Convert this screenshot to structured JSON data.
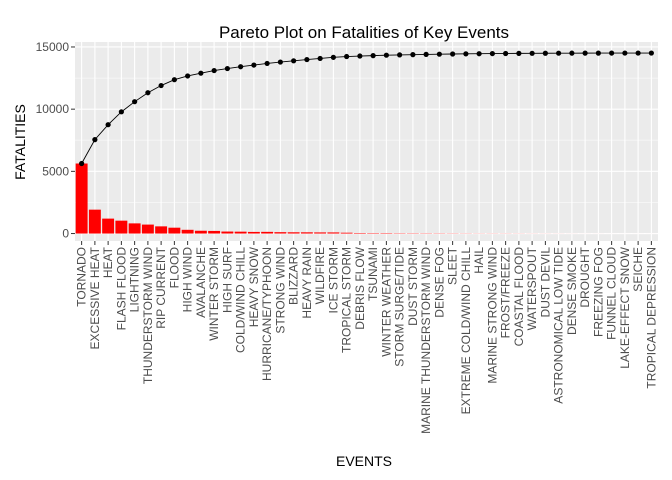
{
  "chart_data": {
    "type": "bar",
    "title": "Pareto Plot on Fatalities of Key Events",
    "xlabel": "EVENTS",
    "ylabel": "FATALITIES",
    "ylim": [
      -600,
      15400
    ],
    "yticks": [
      0,
      5000,
      10000,
      15000
    ],
    "grid": true,
    "legend": "none",
    "colors": {
      "bar": "#ff0000",
      "line": "#000000",
      "panel": "#ebebeb",
      "grid_major": "#ffffff",
      "grid_minor": "#f5f5f5"
    },
    "categories": [
      "TORNADO",
      "EXCESSIVE HEAT",
      "HEAT",
      "FLASH FLOOD",
      "LIGHTNING",
      "THUNDERSTORM WIND",
      "RIP CURRENT",
      "FLOOD",
      "HIGH WIND",
      "AVALANCHE",
      "WINTER STORM",
      "HIGH SURF",
      "COLD/WIND CHILL",
      "HEAVY SNOW",
      "HURRICANE/TYPHOON",
      "STRONG WIND",
      "BLIZZARD",
      "HEAVY RAIN",
      "WILDFIRE",
      "ICE STORM",
      "TROPICAL STORM",
      "DEBRIS FLOW",
      "TSUNAMI",
      "WINTER WEATHER",
      "STORM SURGE/TIDE",
      "DUST STORM",
      "MARINE THUNDERSTORM WIND",
      "DENSE FOG",
      "SLEET",
      "EXTREME COLD/WIND CHILL",
      "HAIL",
      "MARINE STRONG WIND",
      "FROST/FREEZE",
      "COASTAL FLOOD",
      "WATERSPOUT",
      "DUST DEVIL",
      "ASTRONOMICAL LOW TIDE",
      "DENSE SMOKE",
      "DROUGHT",
      "FREEZING FOG",
      "FUNNEL CLOUD",
      "LAKE-EFFECT SNOW",
      "SEICHE",
      "TROPICAL DEPRESSION"
    ],
    "series": [
      {
        "type": "bar",
        "values": [
          5630,
          1920,
          1200,
          1035,
          817,
          720,
          577,
          470,
          300,
          224,
          210,
          160,
          150,
          130,
          135,
          110,
          101,
          98,
          90,
          89,
          66,
          40,
          33,
          33,
          24,
          22,
          19,
          18,
          15,
          12,
          10,
          10,
          9,
          8,
          6,
          5,
          4,
          3,
          2,
          2,
          1,
          1,
          1,
          1
        ]
      },
      {
        "type": "line",
        "values": [
          5630,
          7550,
          8750,
          9785,
          10602,
          11322,
          11899,
          12369,
          12669,
          12893,
          13103,
          13263,
          13413,
          13543,
          13678,
          13788,
          13889,
          13987,
          14077,
          14166,
          14232,
          14272,
          14305,
          14338,
          14362,
          14384,
          14403,
          14421,
          14436,
          14448,
          14458,
          14468,
          14477,
          14485,
          14491,
          14496,
          14500,
          14503,
          14505,
          14507,
          14508,
          14509,
          14510,
          14511
        ]
      }
    ]
  }
}
